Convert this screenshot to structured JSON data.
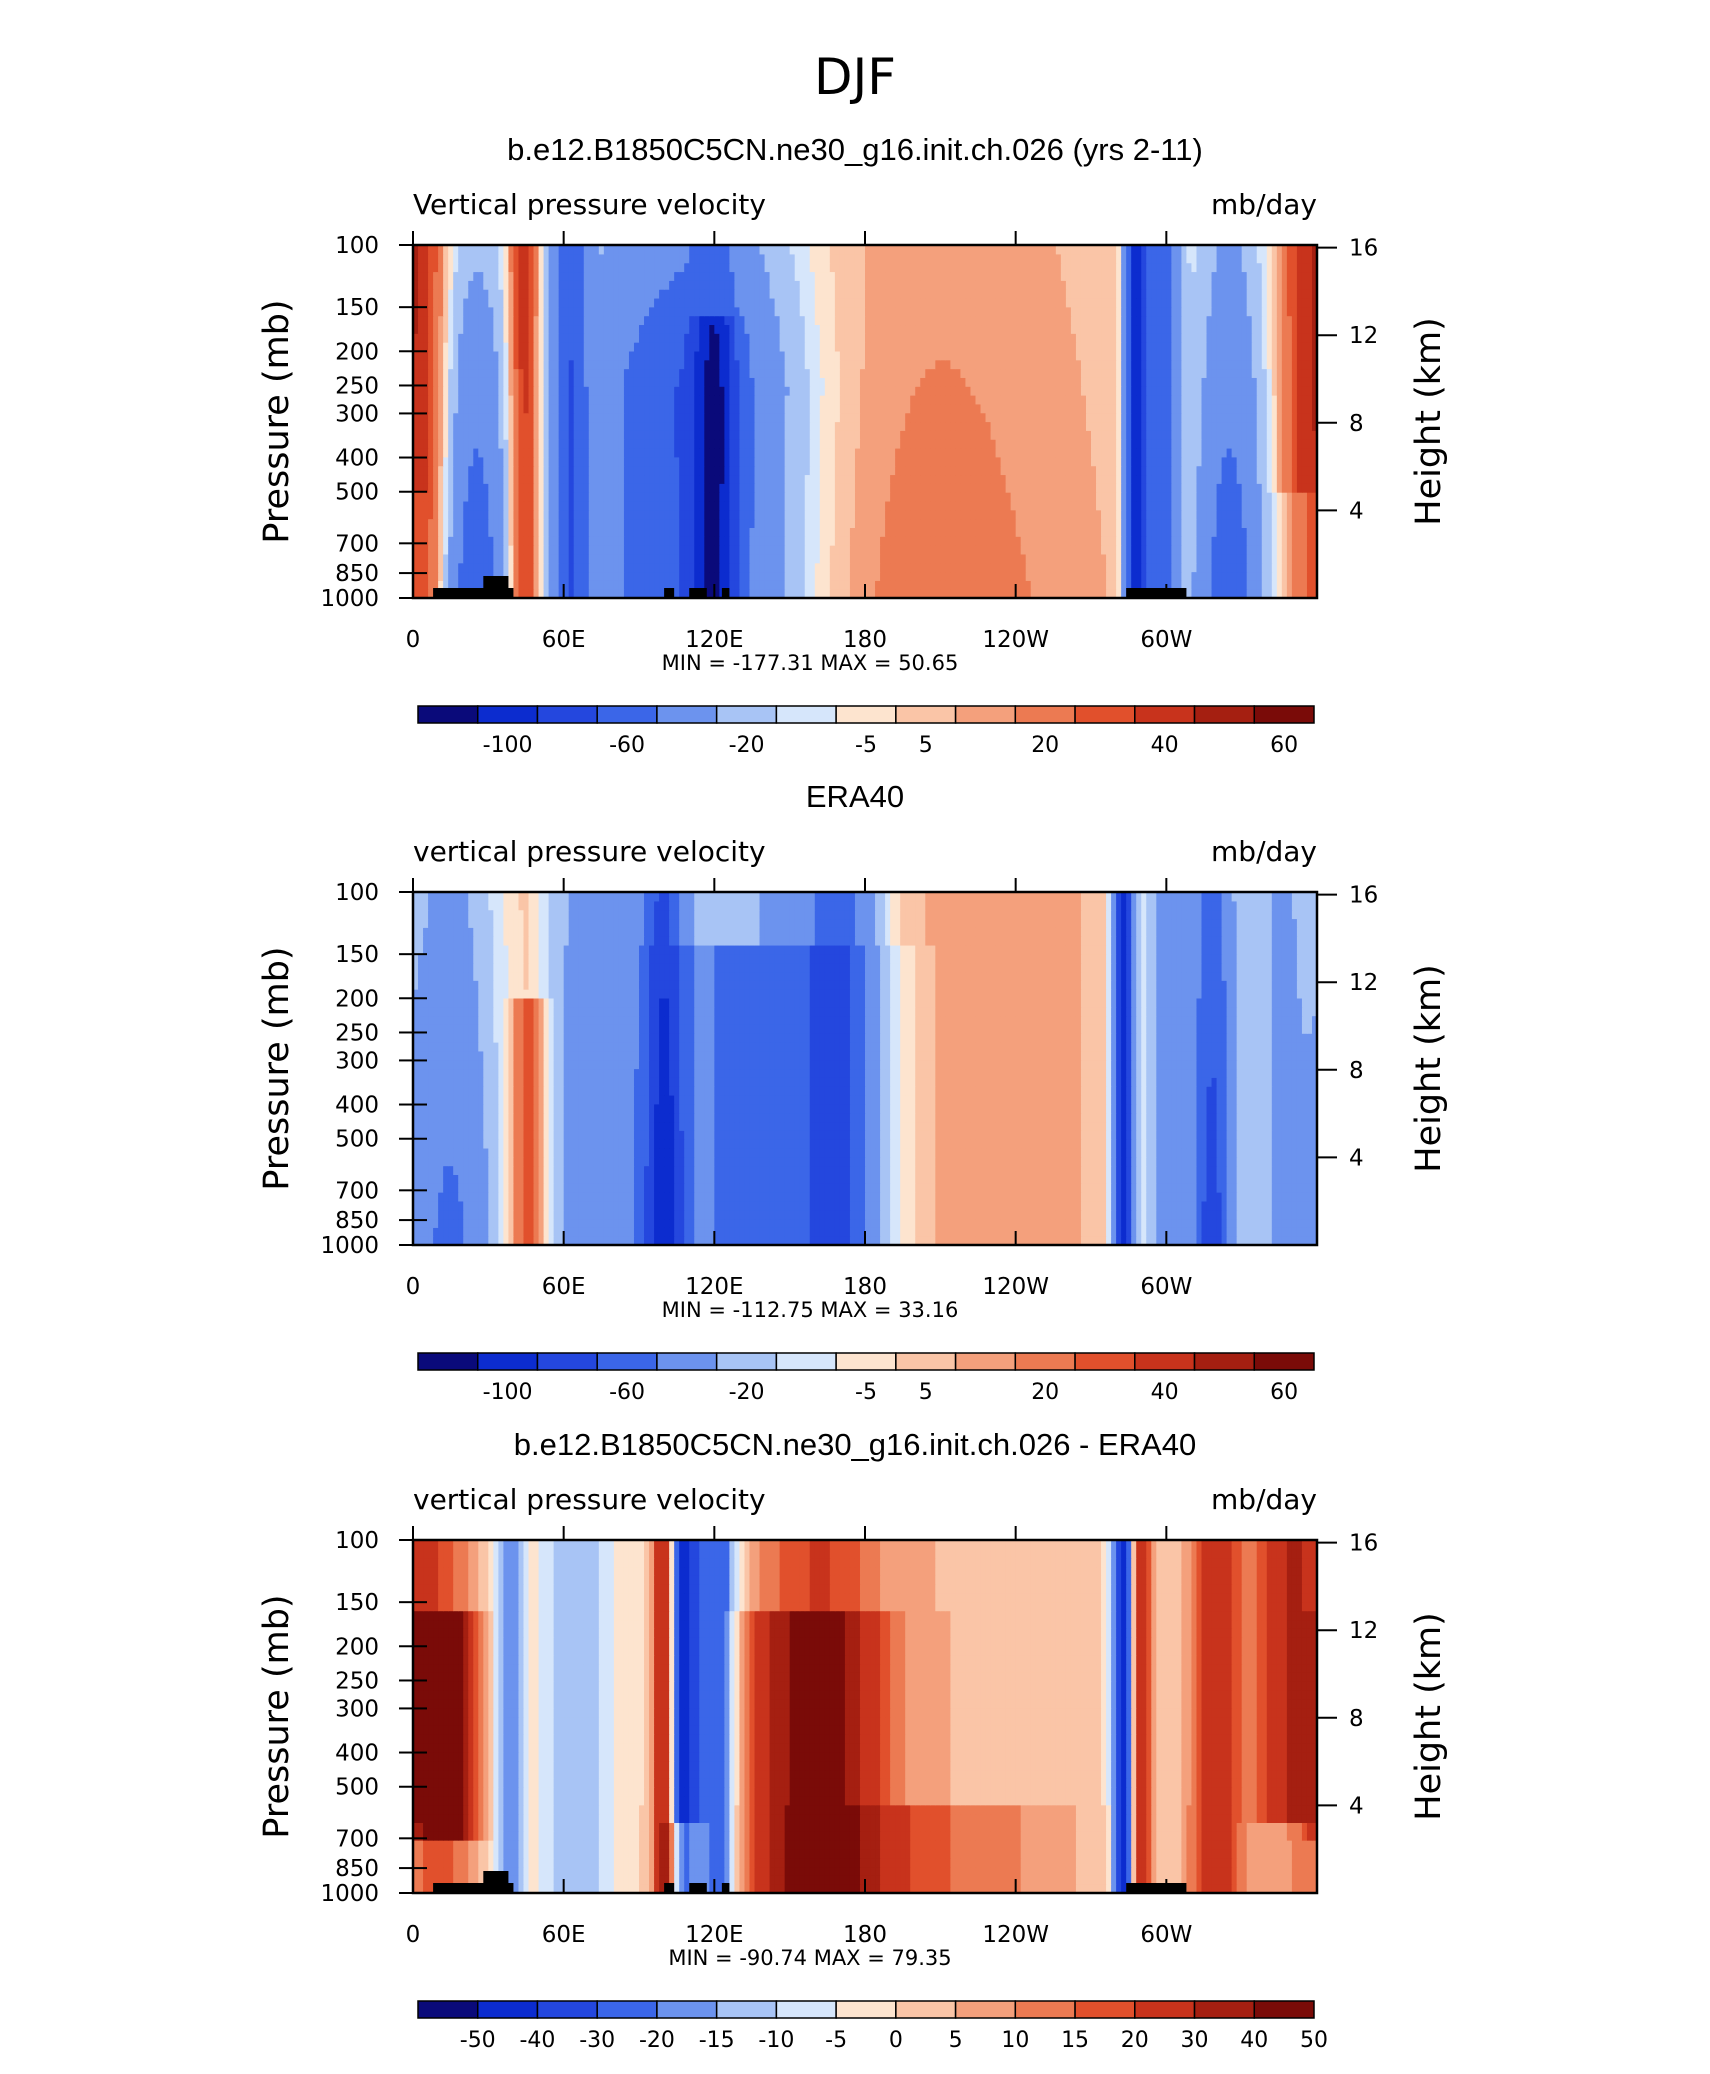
{
  "figure": {
    "title": "DJF",
    "pressure_ticks": [
      "100",
      "150",
      "200",
      "250",
      "300",
      "400",
      "500",
      "700",
      "850",
      "1000"
    ],
    "height_ticks": [
      "16",
      "12",
      "8",
      "4"
    ],
    "lon_ticks": [
      "0",
      "60E",
      "120E",
      "180",
      "120W",
      "60W"
    ],
    "left_axis_label": "Pressure (mb)",
    "right_axis_label": "Height (km)"
  },
  "chart_data": [
    {
      "type": "heatmap",
      "title": "b.e12.B1850C5CN.ne30_g16.init.ch.026 (yrs 2-11)",
      "subtitle_left": "Vertical pressure velocity",
      "subtitle_right": "mb/day",
      "stats": "MIN = -177.31 MAX = 50.65",
      "xlabel": "",
      "ylabel": "Pressure (mb)",
      "ylabel_right": "Height (km)",
      "xlim": [
        0,
        360
      ],
      "ylim": [
        1000,
        100
      ],
      "colorbar_labels": [
        "-100",
        "-60",
        "-20",
        "-5",
        "5",
        "20",
        "40",
        "60"
      ],
      "colorbar_colors": [
        "#0a0a7a",
        "#0c2ccf",
        "#2447de",
        "#3b66e8",
        "#6c93ee",
        "#a8c4f5",
        "#d6e6fb",
        "#fde4cf",
        "#fac5a7",
        "#f4a07c",
        "#ec7a52",
        "#e1502c",
        "#c8331c",
        "#a51f11",
        "#7a0b08"
      ],
      "has_topography": true
    },
    {
      "type": "heatmap",
      "title": "ERA40",
      "subtitle_left": "vertical pressure velocity",
      "subtitle_right": "mb/day",
      "stats": "MIN = -112.75 MAX = 33.16",
      "xlabel": "",
      "ylabel": "Pressure (mb)",
      "ylabel_right": "Height (km)",
      "xlim": [
        0,
        360
      ],
      "ylim": [
        1000,
        100
      ],
      "colorbar_labels": [
        "-100",
        "-60",
        "-20",
        "-5",
        "5",
        "20",
        "40",
        "60"
      ],
      "colorbar_colors": [
        "#0a0a7a",
        "#0c2ccf",
        "#2447de",
        "#3b66e8",
        "#6c93ee",
        "#a8c4f5",
        "#d6e6fb",
        "#fde4cf",
        "#fac5a7",
        "#f4a07c",
        "#ec7a52",
        "#e1502c",
        "#c8331c",
        "#a51f11",
        "#7a0b08"
      ],
      "has_topography": false
    },
    {
      "type": "heatmap",
      "title": "b.e12.B1850C5CN.ne30_g16.init.ch.026 - ERA40",
      "subtitle_left": "vertical pressure velocity",
      "subtitle_right": "mb/day",
      "stats": "MIN = -90.74 MAX = 79.35",
      "xlabel": "",
      "ylabel": "Pressure (mb)",
      "ylabel_right": "Height (km)",
      "xlim": [
        0,
        360
      ],
      "ylim": [
        1000,
        100
      ],
      "colorbar_labels": [
        "-50",
        "-40",
        "-30",
        "-20",
        "-15",
        "-10",
        "-5",
        "0",
        "5",
        "10",
        "15",
        "20",
        "30",
        "40",
        "50"
      ],
      "colorbar_colors": [
        "#0a0a7a",
        "#0c2ccf",
        "#2447de",
        "#3b66e8",
        "#6c93ee",
        "#a8c4f5",
        "#d6e6fb",
        "#fde4cf",
        "#fac5a7",
        "#f4a07c",
        "#ec7a52",
        "#e1502c",
        "#c8331c",
        "#a51f11",
        "#7a0b08"
      ],
      "has_topography": true
    }
  ]
}
